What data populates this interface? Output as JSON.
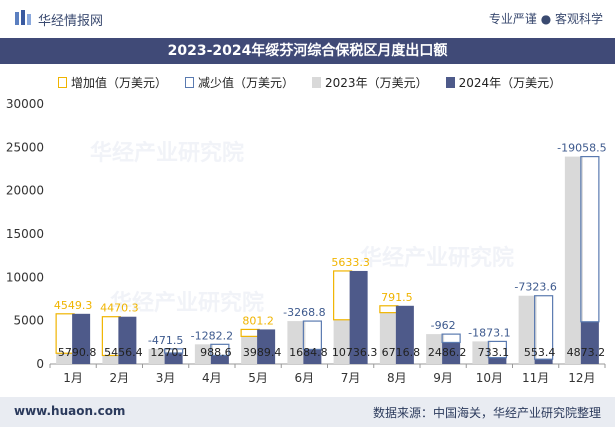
{
  "header": {
    "brand": "华经情报网",
    "tagline": "专业严谨 ● 客观科学"
  },
  "footer": {
    "url": "www.huaon.com",
    "source": "数据来源：中国海关，华经产业研究院整理"
  },
  "watermark_text": "华经产业研究院",
  "colors": {
    "increase": "#f0b400",
    "decrease": "#5a7ab0",
    "y2023": "#d9d9d9",
    "y2024": "#4e5a8a",
    "title_bar": "#404a77"
  },
  "chart_data": {
    "type": "bar",
    "title": "2023-2024年绥芬河综合保税区月度出口额",
    "legend": [
      "增加值（万美元）",
      "减少值（万美元）",
      "2023年（万美元）",
      "2024年（万美元）"
    ],
    "legend_position": "top-left",
    "categories": [
      "1月",
      "2月",
      "3月",
      "4月",
      "5月",
      "6月",
      "7月",
      "8月",
      "9月",
      "10月",
      "11月",
      "12月"
    ],
    "series": [
      {
        "name": "2023年（万美元）",
        "values": [
          1241.5,
          986.1,
          1741.6,
          2270.6,
          3188.2,
          4953.1,
          5103.0,
          5925.3,
          3448.2,
          2606.2,
          7876.9,
          23931.7
        ]
      },
      {
        "name": "2024年（万美元）",
        "values": [
          5790.8,
          5456.4,
          1270.1,
          988.6,
          3989.4,
          1684.8,
          10736.3,
          6716.8,
          2486.2,
          733.1,
          553.4,
          4873.2
        ]
      }
    ],
    "changes": [
      "4549.3",
      "4470.3",
      "-471.5",
      "-1282.2",
      "801.2",
      "-3268.8",
      "5633.3",
      "791.5",
      "-962",
      "-1873.1",
      "-7323.6",
      "-19058.5"
    ],
    "value_labels_2024": [
      "5790.8",
      "5456.4",
      "1270.1",
      "988.6",
      "3989.4",
      "1684.8",
      "10736.3",
      "6716.8",
      "2486.2",
      "733.1",
      "553.4",
      "4873.2"
    ],
    "yticks": [
      "0",
      "5000",
      "10000",
      "15000",
      "20000",
      "25000",
      "30000"
    ],
    "ylim": [
      0,
      30000
    ],
    "grid": false
  }
}
